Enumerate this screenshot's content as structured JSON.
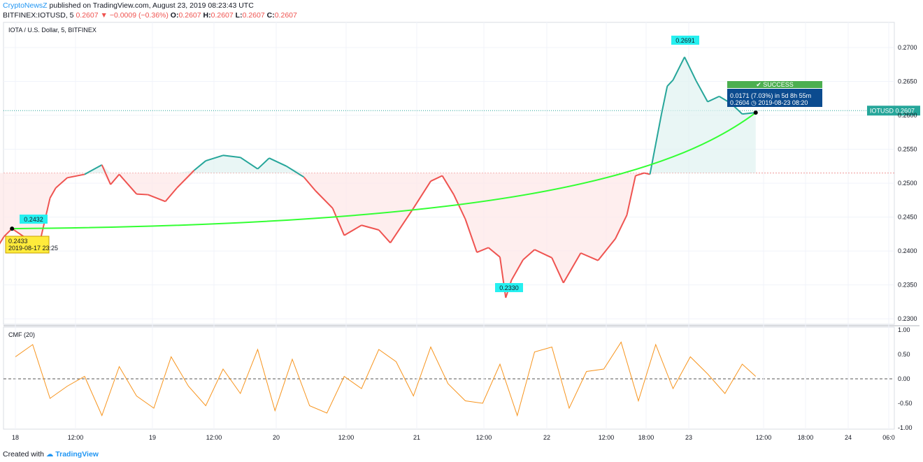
{
  "header": {
    "author": "CryptoNewsZ",
    "published": "published on TradingView.com, August 23, 2019 08:23:43 UTC",
    "symbol_prefix": "BITFINEX:IOTUSD, 5",
    "last": "0.2607",
    "arrow": "▼",
    "change": "−0.0009 (−0.36%)",
    "o_label": "O:",
    "o": "0.2607",
    "h_label": "H:",
    "h": "0.2607",
    "l_label": "L:",
    "l": "0.2607",
    "c_label": "C:",
    "c": "0.2607"
  },
  "footer": {
    "created": "Created with",
    "brand": "TradingView"
  },
  "colors": {
    "up": "#26a69a",
    "down": "#ef5350",
    "curve": "#33ff33",
    "cmf": "#f7941d",
    "label_bg": "#26f0f0",
    "success": "#4caf50",
    "info_bg": "#0b4b8f",
    "date_bg": "#ffeb3b"
  },
  "chart_data": [
    {
      "type": "line",
      "title": "IOTA / U.S. Dollar, 5, BITFINEX",
      "xlabel": "",
      "ylabel": "",
      "x_ticks": [
        "18",
        "12:00",
        "19",
        "12:00",
        "20",
        "12:00",
        "21",
        "12:00",
        "22",
        "12:00",
        "18:00",
        "23",
        "12:00",
        "18:00",
        "24",
        "06:0"
      ],
      "y_ticks": [
        "0.2700",
        "0.2650",
        "0.2600",
        "0.2550",
        "0.2500",
        "0.2450",
        "0.2400",
        "0.2350",
        "0.2300"
      ],
      "ylim": [
        0.2296,
        0.2733
      ],
      "price_tag": {
        "label": "IOTUSD",
        "value": "0.2607"
      },
      "series": [
        {
          "x": [
            "2019-08-17 20:00",
            "2019-08-17 22:00",
            "2019-08-17 23:25",
            "2019-08-18 02:00",
            "2019-08-18 04:00",
            "2019-08-18 06:00",
            "2019-08-18 07:00",
            "2019-08-18 09:00",
            "2019-08-18 12:00",
            "2019-08-18 15:00",
            "2019-08-18 16:30",
            "2019-08-18 18:00",
            "2019-08-18 21:00",
            "2019-08-18 23:00",
            "2019-08-19 02:00",
            "2019-08-19 04:00",
            "2019-08-19 07:00",
            "2019-08-19 09:00",
            "2019-08-19 12:00",
            "2019-08-19 15:00",
            "2019-08-19 18:00",
            "2019-08-19 20:00",
            "2019-08-19 23:00",
            "2019-08-20 02:00",
            "2019-08-20 04:00",
            "2019-08-20 07:00",
            "2019-08-20 09:00",
            "2019-08-20 12:00",
            "2019-08-20 15:00",
            "2019-08-20 17:00",
            "2019-08-20 21:00",
            "2019-08-21 00:00",
            "2019-08-21 02:00",
            "2019-08-21 04:00",
            "2019-08-21 06:00",
            "2019-08-21 08:00",
            "2019-08-21 10:00",
            "2019-08-21 12:00",
            "2019-08-21 13:00",
            "2019-08-21 14:00",
            "2019-08-21 16:00",
            "2019-08-21 18:00",
            "2019-08-21 21:00",
            "2019-08-21 23:00",
            "2019-08-22 02:00",
            "2019-08-22 05:00",
            "2019-08-22 08:00",
            "2019-08-22 10:00",
            "2019-08-22 11:30",
            "2019-08-22 13:00",
            "2019-08-22 14:00",
            "2019-08-22 16:00",
            "2019-08-22 17:00",
            "2019-08-22 18:00",
            "2019-08-22 20:00",
            "2019-08-22 22:00",
            "2019-08-23 00:00",
            "2019-08-23 02:00",
            "2019-08-23 04:00",
            "2019-08-23 06:00",
            "2019-08-23 08:20"
          ],
          "values": [
            0.2393,
            0.2421,
            0.2433,
            0.2418,
            0.2404,
            0.2478,
            0.2493,
            0.2508,
            0.2513,
            0.2527,
            0.2498,
            0.2513,
            0.2484,
            0.2483,
            0.2473,
            0.2493,
            0.2519,
            0.2533,
            0.2541,
            0.2538,
            0.2521,
            0.2537,
            0.2525,
            0.2509,
            0.2489,
            0.2463,
            0.2423,
            0.2438,
            0.2431,
            0.2412,
            0.2463,
            0.2503,
            0.2511,
            0.2483,
            0.2447,
            0.2398,
            0.2405,
            0.2391,
            0.2331,
            0.2357,
            0.2387,
            0.2402,
            0.239,
            0.2353,
            0.2397,
            0.2386,
            0.2418,
            0.2453,
            0.2511,
            0.2515,
            0.2513,
            0.2602,
            0.2643,
            0.2652,
            0.2686,
            0.2651,
            0.262,
            0.2628,
            0.2618,
            0.2602,
            0.2604
          ]
        }
      ],
      "annotations": {
        "start_label": "0.2432",
        "start_box_value": "0.2433",
        "start_box_date": "2019-08-17 23:25",
        "high_label": "0.2691",
        "low_label": "0.2330",
        "success": "SUCCESS",
        "info_line1": "0.0171 (7.03%) in 5d 8h 55m",
        "info_line2": "0.2604 ◷ 2019-08-23 08:20"
      }
    },
    {
      "type": "line",
      "title": "CMF (20)",
      "ylim": [
        -1.0,
        1.0
      ],
      "y_ticks": [
        "1.00",
        "0.50",
        "0.00",
        "-0.50",
        "-1.00"
      ],
      "series": [
        {
          "x": [
            "2019-08-18 00:00",
            "2019-08-18 03:00",
            "2019-08-18 06:00",
            "2019-08-18 09:00",
            "2019-08-18 12:00",
            "2019-08-18 15:00",
            "2019-08-18 18:00",
            "2019-08-18 21:00",
            "2019-08-19 00:00",
            "2019-08-19 03:00",
            "2019-08-19 06:00",
            "2019-08-19 09:00",
            "2019-08-19 12:00",
            "2019-08-19 15:00",
            "2019-08-19 18:00",
            "2019-08-19 21:00",
            "2019-08-20 00:00",
            "2019-08-20 03:00",
            "2019-08-20 06:00",
            "2019-08-20 09:00",
            "2019-08-20 12:00",
            "2019-08-20 15:00",
            "2019-08-20 18:00",
            "2019-08-20 21:00",
            "2019-08-21 00:00",
            "2019-08-21 03:00",
            "2019-08-21 06:00",
            "2019-08-21 09:00",
            "2019-08-21 12:00",
            "2019-08-21 15:00",
            "2019-08-21 18:00",
            "2019-08-21 21:00",
            "2019-08-22 00:00",
            "2019-08-22 03:00",
            "2019-08-22 06:00",
            "2019-08-22 09:00",
            "2019-08-22 12:00",
            "2019-08-22 15:00",
            "2019-08-22 18:00",
            "2019-08-22 21:00",
            "2019-08-23 00:00",
            "2019-08-23 03:00",
            "2019-08-23 06:00",
            "2019-08-23 08:20"
          ],
          "values": [
            0.45,
            0.7,
            -0.4,
            -0.15,
            0.05,
            -0.75,
            0.25,
            -0.35,
            -0.6,
            0.45,
            -0.15,
            -0.55,
            0.2,
            -0.3,
            0.6,
            -0.65,
            0.4,
            -0.55,
            -0.7,
            0.05,
            -0.2,
            0.6,
            0.35,
            -0.35,
            0.65,
            -0.1,
            -0.45,
            -0.5,
            0.3,
            -0.75,
            0.55,
            0.65,
            -0.6,
            0.15,
            0.2,
            0.75,
            -0.45,
            0.7,
            -0.2,
            0.45,
            0.1,
            -0.3,
            0.3,
            0.05
          ]
        }
      ]
    }
  ]
}
